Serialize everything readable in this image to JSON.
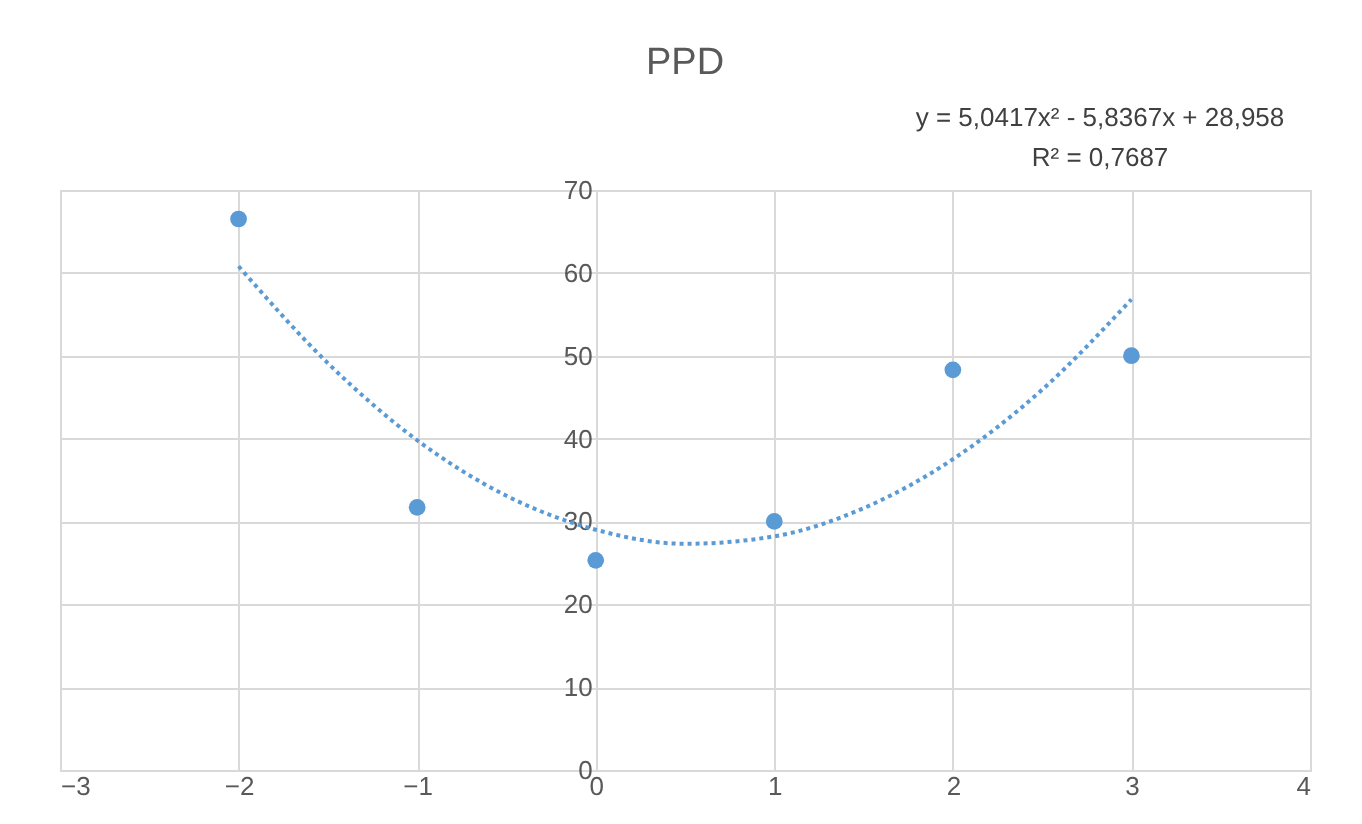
{
  "chart_data": {
    "type": "scatter",
    "title": "PPD",
    "annotations": [
      "y = 5,0417x² - 5,8367x + 28,958",
      "R² = 0,7687"
    ],
    "xlim": [
      -3,
      4
    ],
    "xticks": [
      -3,
      -2,
      -1,
      0,
      1,
      2,
      3,
      4
    ],
    "ylim": [
      0,
      70
    ],
    "yticks": [
      0,
      10,
      20,
      30,
      40,
      50,
      60,
      70
    ],
    "grid": true,
    "marker": "circle",
    "series": [
      {
        "color": "#5b9bd5",
        "x": [
          -2,
          -1,
          0,
          1,
          2,
          3
        ],
        "values": [
          66.5,
          31.7,
          25.3,
          30,
          48.3,
          50
        ]
      },
      {
        "type": "line",
        "marker": "none",
        "color": "#5b9bd5",
        "line_style": "dotted",
        "x": [
          -2,
          -1.5,
          -1,
          -0.5,
          0,
          0.5,
          1,
          1.5,
          2,
          2.5,
          3
        ],
        "values": [
          60.8,
          49.1,
          39.8,
          33.1,
          29.0,
          27.3,
          28.2,
          31.6,
          37.5,
          45.9,
          56.8
        ]
      }
    ]
  }
}
